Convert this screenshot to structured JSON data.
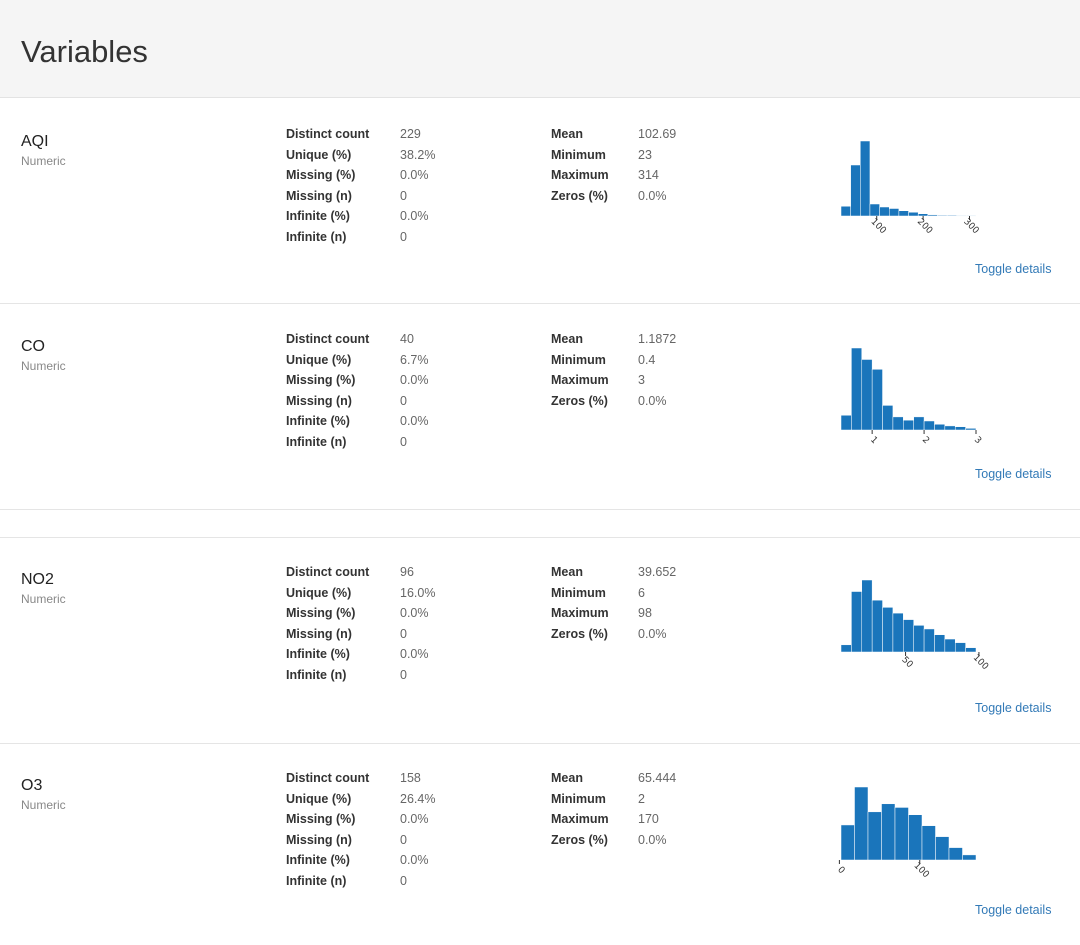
{
  "page": {
    "title": "Variables"
  },
  "colors": {
    "bar": "#1a75bb",
    "link": "#337ab7",
    "header_bg": "#f5f5f5"
  },
  "variables": [
    {
      "name": "AQI",
      "type": "Numeric",
      "stats_left": [
        {
          "label": "Distinct count",
          "value": "229"
        },
        {
          "label": "Unique (%)",
          "value": "38.2%"
        },
        {
          "label": "Missing (%)",
          "value": "0.0%"
        },
        {
          "label": "Missing (n)",
          "value": "0"
        },
        {
          "label": "Infinite (%)",
          "value": "0.0%"
        },
        {
          "label": "Infinite (n)",
          "value": "0"
        }
      ],
      "stats_right": [
        {
          "label": "Mean",
          "value": "102.69"
        },
        {
          "label": "Minimum",
          "value": "23"
        },
        {
          "label": "Maximum",
          "value": "314"
        },
        {
          "label": "Zeros (%)",
          "value": "0.0%"
        }
      ],
      "toggle_label": "Toggle details"
    },
    {
      "name": "CO",
      "type": "Numeric",
      "stats_left": [
        {
          "label": "Distinct count",
          "value": "40"
        },
        {
          "label": "Unique (%)",
          "value": "6.7%"
        },
        {
          "label": "Missing (%)",
          "value": "0.0%"
        },
        {
          "label": "Missing (n)",
          "value": "0"
        },
        {
          "label": "Infinite (%)",
          "value": "0.0%"
        },
        {
          "label": "Infinite (n)",
          "value": "0"
        }
      ],
      "stats_right": [
        {
          "label": "Mean",
          "value": "1.1872"
        },
        {
          "label": "Minimum",
          "value": "0.4"
        },
        {
          "label": "Maximum",
          "value": "3"
        },
        {
          "label": "Zeros (%)",
          "value": "0.0%"
        }
      ],
      "toggle_label": "Toggle details"
    },
    {
      "name": "NO2",
      "type": "Numeric",
      "stats_left": [
        {
          "label": "Distinct count",
          "value": "96"
        },
        {
          "label": "Unique (%)",
          "value": "16.0%"
        },
        {
          "label": "Missing (%)",
          "value": "0.0%"
        },
        {
          "label": "Missing (n)",
          "value": "0"
        },
        {
          "label": "Infinite (%)",
          "value": "0.0%"
        },
        {
          "label": "Infinite (n)",
          "value": "0"
        }
      ],
      "stats_right": [
        {
          "label": "Mean",
          "value": "39.652"
        },
        {
          "label": "Minimum",
          "value": "6"
        },
        {
          "label": "Maximum",
          "value": "98"
        },
        {
          "label": "Zeros (%)",
          "value": "0.0%"
        }
      ],
      "toggle_label": "Toggle details"
    },
    {
      "name": "O3",
      "type": "Numeric",
      "stats_left": [
        {
          "label": "Distinct count",
          "value": "158"
        },
        {
          "label": "Unique (%)",
          "value": "26.4%"
        },
        {
          "label": "Missing (%)",
          "value": "0.0%"
        },
        {
          "label": "Missing (n)",
          "value": "0"
        },
        {
          "label": "Infinite (%)",
          "value": "0.0%"
        },
        {
          "label": "Infinite (n)",
          "value": "0"
        }
      ],
      "stats_right": [
        {
          "label": "Mean",
          "value": "65.444"
        },
        {
          "label": "Minimum",
          "value": "2"
        },
        {
          "label": "Maximum",
          "value": "170"
        },
        {
          "label": "Zeros (%)",
          "value": "0.0%"
        }
      ],
      "toggle_label": "Toggle details"
    }
  ],
  "chart_data": [
    {
      "type": "bar",
      "variable": "AQI",
      "xlim": [
        23,
        314
      ],
      "bin_edges": [
        23,
        43.8,
        64.6,
        85.4,
        106.2,
        127,
        147.8,
        168.6,
        189.4,
        210.2,
        231,
        251.8,
        272.6,
        293.4,
        314
      ],
      "values": [
        0.13,
        0.68,
        1.0,
        0.16,
        0.12,
        0.1,
        0.07,
        0.05,
        0.03,
        0.015,
        0.01,
        0.01,
        0.005,
        0.005
      ],
      "ticks": [
        100,
        200,
        300
      ],
      "tick_labels": [
        "100",
        "200",
        "300"
      ]
    },
    {
      "type": "bar",
      "variable": "CO",
      "xlim": [
        0.4,
        3
      ],
      "bin_edges": [
        0.4,
        0.6,
        0.8,
        1.0,
        1.2,
        1.4,
        1.6,
        1.8,
        2.0,
        2.2,
        2.4,
        2.6,
        2.8,
        3.0
      ],
      "values": [
        0.18,
        1.0,
        0.86,
        0.74,
        0.3,
        0.16,
        0.12,
        0.16,
        0.11,
        0.07,
        0.05,
        0.04,
        0.02
      ],
      "ticks": [
        1,
        2,
        3
      ],
      "tick_labels": [
        "1",
        "2",
        "3"
      ]
    },
    {
      "type": "bar",
      "variable": "NO2",
      "xlim": [
        6,
        98
      ],
      "bin_edges": [
        6,
        13.08,
        20.15,
        27.23,
        34.31,
        41.38,
        48.46,
        55.54,
        62.62,
        69.69,
        76.77,
        83.85,
        90.92,
        98
      ],
      "values": [
        0.1,
        0.84,
        1.0,
        0.72,
        0.62,
        0.54,
        0.45,
        0.37,
        0.32,
        0.24,
        0.18,
        0.13,
        0.06
      ],
      "ticks": [
        50,
        100
      ],
      "tick_labels": [
        "50",
        "100"
      ]
    },
    {
      "type": "bar",
      "variable": "O3",
      "xlim": [
        2,
        170
      ],
      "bin_edges": [
        2,
        18.8,
        35.6,
        52.4,
        69.2,
        86,
        102.8,
        119.6,
        136.4,
        153.2,
        170
      ],
      "values": [
        0.48,
        1.0,
        0.66,
        0.77,
        0.72,
        0.62,
        0.47,
        0.32,
        0.17,
        0.07
      ],
      "ticks": [
        0,
        100
      ],
      "tick_labels": [
        "0",
        "100"
      ]
    }
  ]
}
